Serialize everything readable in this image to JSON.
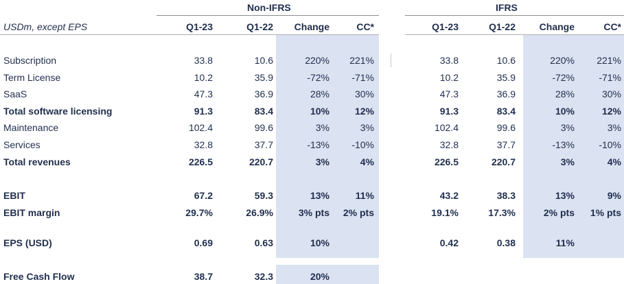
{
  "units_label": "USDm, except EPS",
  "groups": {
    "nonifrs": "Non-IFRS",
    "ifrs": "IFRS"
  },
  "columns": [
    "Q1-23",
    "Q1-22",
    "Change",
    "CC*"
  ],
  "rows": [
    {
      "label": "Subscription",
      "bold": false,
      "nonifrs": [
        "33.8",
        "10.6",
        "220%",
        "221%"
      ],
      "ifrs": [
        "33.8",
        "10.6",
        "220%",
        "221%"
      ]
    },
    {
      "label": "Term License",
      "bold": false,
      "nonifrs": [
        "10.2",
        "35.9",
        "-72%",
        "-71%"
      ],
      "ifrs": [
        "10.2",
        "35.9",
        "-72%",
        "-71%"
      ]
    },
    {
      "label": "SaaS",
      "bold": false,
      "nonifrs": [
        "47.3",
        "36.9",
        "28%",
        "30%"
      ],
      "ifrs": [
        "47.3",
        "36.9",
        "28%",
        "30%"
      ]
    },
    {
      "label": "Total software licensing",
      "bold": true,
      "nonifrs": [
        "91.3",
        "83.4",
        "10%",
        "12%"
      ],
      "ifrs": [
        "91.3",
        "83.4",
        "10%",
        "12%"
      ]
    },
    {
      "label": "Maintenance",
      "bold": false,
      "nonifrs": [
        "102.4",
        "99.6",
        "3%",
        "3%"
      ],
      "ifrs": [
        "102.4",
        "99.6",
        "3%",
        "3%"
      ]
    },
    {
      "label": "Services",
      "bold": false,
      "nonifrs": [
        "32.8",
        "37.7",
        "-13%",
        "-10%"
      ],
      "ifrs": [
        "32.8",
        "37.7",
        "-13%",
        "-10%"
      ]
    },
    {
      "label": "Total revenues",
      "bold": true,
      "nonifrs": [
        "226.5",
        "220.7",
        "3%",
        "4%"
      ],
      "ifrs": [
        "226.5",
        "220.7",
        "3%",
        "4%"
      ]
    },
    {
      "label": "EBIT",
      "bold": true,
      "nonifrs": [
        "67.2",
        "59.3",
        "13%",
        "11%"
      ],
      "ifrs": [
        "43.2",
        "38.3",
        "13%",
        "9%"
      ]
    },
    {
      "label": "EBIT margin",
      "bold": true,
      "nonifrs": [
        "29.7%",
        "26.9%",
        "3% pts",
        "2% pts"
      ],
      "ifrs": [
        "19.1%",
        "17.3%",
        "2% pts",
        "1% pts"
      ]
    },
    {
      "label": "EPS (USD)",
      "bold": true,
      "nonifrs": [
        "0.69",
        "0.63",
        "10%",
        ""
      ],
      "ifrs": [
        "0.42",
        "0.38",
        "11%",
        ""
      ]
    },
    {
      "label": "Free Cash Flow",
      "bold": true,
      "nonifrs": [
        "38.7",
        "32.3",
        "20%",
        ""
      ],
      "ifrs": [
        "",
        "",
        "",
        ""
      ]
    }
  ],
  "colors": {
    "shade": "#dbe2f1",
    "text": "#1f2d4d"
  }
}
